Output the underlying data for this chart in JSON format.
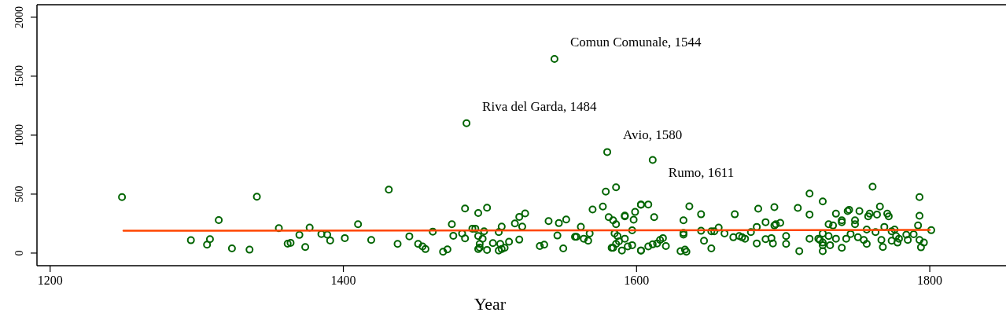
{
  "chart_data": {
    "type": "scatter",
    "xlabel": "Year",
    "xlim": [
      1191,
      1852
    ],
    "ylim": [
      -107,
      2106
    ],
    "xticks": [
      1200,
      1400,
      1600,
      1800
    ],
    "yticks": [
      0,
      500,
      1000,
      1500,
      2000
    ],
    "grid": false,
    "annotations": [
      {
        "text": "Comun Comunale, 1544",
        "x": 1544,
        "y": 1646
      },
      {
        "text": "Riva del Garda, 1484",
        "x": 1484,
        "y": 1101
      },
      {
        "text": "Avio, 1580",
        "x": 1580,
        "y": 857
      },
      {
        "text": "Rumo, 1611",
        "x": 1611,
        "y": 790
      }
    ],
    "series": [
      {
        "marker": "circle",
        "color": "#006400",
        "x": [
          1249,
          1296,
          1307,
          1309,
          1315,
          1324,
          1336,
          1341,
          1356,
          1362,
          1364,
          1370,
          1374,
          1377,
          1385,
          1389,
          1391,
          1401,
          1410,
          1419,
          1431,
          1437,
          1445,
          1451,
          1454,
          1456,
          1461,
          1468,
          1471,
          1474,
          1475,
          1481,
          1483,
          1483,
          1484,
          1488,
          1490,
          1492,
          1492,
          1493,
          1492,
          1493,
          1495,
          1496,
          1498,
          1498,
          1502,
          1506,
          1506,
          1507,
          1508,
          1508,
          1510,
          1513,
          1517,
          1520,
          1520,
          1522,
          1524,
          1534,
          1537,
          1540,
          1544,
          1546,
          1547,
          1550,
          1552,
          1558,
          1559,
          1562,
          1564,
          1567,
          1568,
          1570,
          1577,
          1579,
          1580,
          1586,
          1581,
          1584,
          1586,
          1592,
          1592,
          1598,
          1599,
          1603,
          1584,
          1586,
          1585,
          1587,
          1588,
          1590,
          1592,
          1594,
          1597,
          1597,
          1603,
          1583,
          1603,
          1608,
          1611,
          1612,
          1603,
          1608,
          1611,
          1614,
          1616,
          1618,
          1620,
          1632,
          1632,
          1632,
          1630,
          1633,
          1634,
          1636,
          1644,
          1644,
          1646,
          1651,
          1651,
          1653,
          1656,
          1660,
          1667,
          1666,
          1670,
          1672,
          1674,
          1678,
          1682,
          1683,
          1682,
          1688,
          1688,
          1692,
          1693,
          1694,
          1695,
          1698,
          1694,
          1702,
          1702,
          1710,
          1711,
          1718,
          1718,
          1718,
          1727,
          1727,
          1725,
          1724,
          1727,
          1727,
          1727,
          1731,
          1731,
          1732,
          1734,
          1736,
          1736,
          1740,
          1740,
          1740,
          1744,
          1745,
          1743,
          1746,
          1749,
          1749,
          1751,
          1752,
          1755,
          1757,
          1757,
          1758,
          1759,
          1761,
          1764,
          1766,
          1763,
          1767,
          1768,
          1769,
          1771,
          1772,
          1774,
          1776,
          1777,
          1778,
          1779,
          1784,
          1785,
          1789,
          1792,
          1793,
          1793,
          1793,
          1794,
          1796,
          1801,
          1774
        ],
        "values": [
          474,
          109,
          71,
          118,
          280,
          40,
          29,
          478,
          211,
          80,
          87,
          154,
          51,
          216,
          162,
          156,
          107,
          127,
          245,
          111,
          538,
          78,
          142,
          78,
          56,
          34,
          182,
          11,
          31,
          245,
          147,
          167,
          378,
          125,
          1101,
          207,
          207,
          340,
          145,
          78,
          34,
          47,
          122,
          185,
          385,
          27,
          85,
          178,
          22,
          78,
          225,
          34,
          45,
          96,
          251,
          114,
          307,
          225,
          336,
          60,
          71,
          271,
          1646,
          149,
          254,
          40,
          285,
          138,
          138,
          223,
          122,
          105,
          167,
          369,
          394,
          521,
          857,
          558,
          305,
          278,
          245,
          312,
          318,
          283,
          349,
          409,
          45,
          78,
          167,
          145,
          100,
          22,
          122,
          56,
          193,
          67,
          22,
          45,
          412,
          412,
          790,
          305,
          22,
          56,
          74,
          82,
          111,
          127,
          60,
          278,
          171,
          156,
          16,
          29,
          11,
          396,
          329,
          189,
          105,
          40,
          185,
          185,
          216,
          167,
          329,
          134,
          145,
          134,
          122,
          178,
          222,
          376,
          82,
          262,
          118,
          127,
          82,
          234,
          245,
          256,
          389,
          145,
          78,
          383,
          16,
          505,
          327,
          122,
          438,
          167,
          111,
          122,
          89,
          67,
          16,
          245,
          145,
          67,
          234,
          334,
          122,
          278,
          262,
          45,
          356,
          367,
          122,
          162,
          278,
          245,
          134,
          356,
          111,
          78,
          200,
          312,
          334,
          563,
          327,
          394,
          178,
          111,
          51,
          222,
          334,
          312,
          105,
          200,
          145,
          89,
          122,
          156,
          111,
          160,
          234,
          474,
          316,
          111,
          49,
          89,
          194,
          185
        ]
      },
      {
        "type": "line",
        "marker": "none",
        "line_style": "solid",
        "color": "#ff4500",
        "x": [
          1250,
          1800
        ],
        "values": [
          189,
          196
        ]
      }
    ]
  }
}
